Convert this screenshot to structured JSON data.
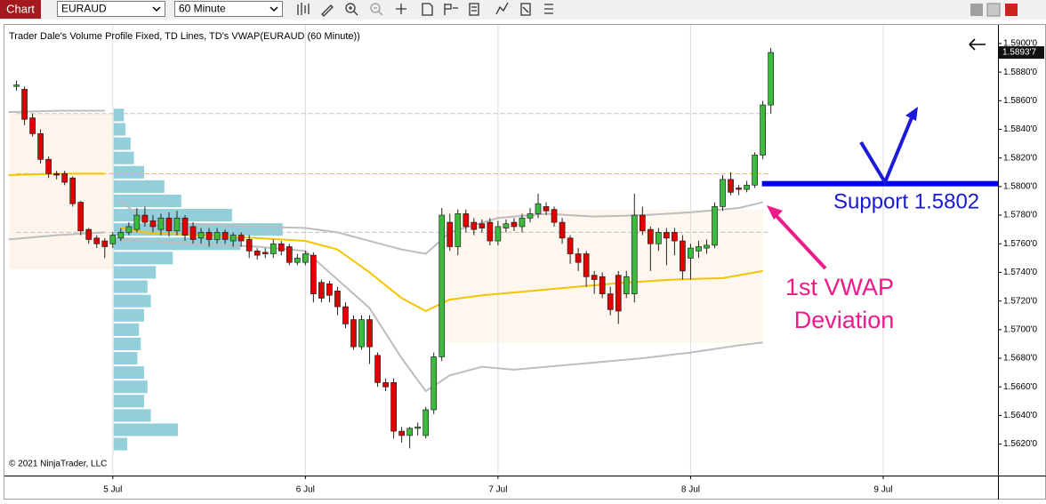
{
  "toolbar": {
    "tab": "Chart",
    "symbol": "EURAUD",
    "interval": "60 Minute"
  },
  "chart_data": {
    "type": "candlestick",
    "title": "Trader Dale's Volume Profile Fixed, TD Lines, TD's VWAP(EURAUD (60 Minute))",
    "copyright": "© 2021 NinjaTrader, LLC",
    "up_color": "#3dbb3d",
    "down_color": "#e00000",
    "open": [
      1.587,
      1.5868,
      1.5848,
      1.5837,
      1.5819,
      1.5809,
      1.5809,
      1.5806,
      1.5789,
      1.577,
      1.5764,
      1.5762,
      1.576,
      1.5764,
      1.5768,
      1.577,
      1.578,
      1.5776,
      1.577,
      1.5778,
      1.5769,
      1.5778,
      1.5772,
      1.5764,
      1.5768,
      1.5763,
      1.5768,
      1.5762,
      1.5766,
      1.5763,
      1.5755,
      1.5754,
      1.5753,
      1.576,
      1.5758,
      1.5747,
      1.5747,
      1.5752,
      1.5733,
      1.5732,
      1.5727,
      1.5716,
      1.5707,
      1.5688,
      1.5707,
      1.5682,
      1.5663,
      1.5663,
      1.5629,
      1.5626,
      1.5631,
      1.5626,
      1.5644,
      1.5681,
      1.5775,
      1.5758,
      1.5781,
      1.5775,
      1.5774,
      1.5775,
      1.5762,
      1.5771,
      1.5775,
      1.5772,
      1.5778,
      1.5781,
      1.5786,
      1.5784,
      1.5775,
      1.5764,
      1.5753,
      1.5753,
      1.5738,
      1.5737,
      1.5725,
      1.5738,
      1.5725,
      1.5725,
      1.578,
      1.577,
      1.576,
      1.5768,
      1.5768,
      1.5762,
      1.575,
      1.5755,
      1.5757,
      1.5759,
      1.5786,
      1.5805,
      1.5799,
      1.5798,
      1.5801,
      1.5822,
      1.5857
    ],
    "high": [
      1.5874,
      1.587,
      1.5851,
      1.584,
      1.5821,
      1.5811,
      1.5811,
      1.5807,
      1.579,
      1.5771,
      1.5766,
      1.5764,
      1.5768,
      1.5771,
      1.5775,
      1.5785,
      1.5786,
      1.578,
      1.5781,
      1.5782,
      1.5783,
      1.578,
      1.5775,
      1.5771,
      1.5771,
      1.5771,
      1.577,
      1.5768,
      1.5768,
      1.5766,
      1.5757,
      1.5757,
      1.5763,
      1.5762,
      1.576,
      1.5753,
      1.5755,
      1.5754,
      1.5735,
      1.5734,
      1.573,
      1.5719,
      1.571,
      1.571,
      1.571,
      1.5684,
      1.5666,
      1.5666,
      1.5632,
      1.5632,
      1.5635,
      1.5646,
      1.5684,
      1.5785,
      1.5781,
      1.5784,
      1.5784,
      1.5778,
      1.5777,
      1.5778,
      1.5776,
      1.5777,
      1.5778,
      1.5781,
      1.5785,
      1.5795,
      1.5789,
      1.5786,
      1.5778,
      1.5766,
      1.5757,
      1.5755,
      1.5741,
      1.574,
      1.573,
      1.5741,
      1.5741,
      1.5795,
      1.5786,
      1.5772,
      1.5771,
      1.5771,
      1.5771,
      1.5766,
      1.576,
      1.5762,
      1.5763,
      1.5789,
      1.5808,
      1.581,
      1.5801,
      1.5804,
      1.5824,
      1.586,
      1.5897
    ],
    "low": [
      1.5867,
      1.5843,
      1.5835,
      1.5816,
      1.5806,
      1.5805,
      1.5801,
      1.5786,
      1.5766,
      1.576,
      1.5757,
      1.575,
      1.5757,
      1.5762,
      1.5766,
      1.5768,
      1.5772,
      1.5768,
      1.5766,
      1.5765,
      1.5766,
      1.5762,
      1.576,
      1.576,
      1.5758,
      1.576,
      1.576,
      1.5758,
      1.5758,
      1.575,
      1.5749,
      1.575,
      1.575,
      1.5752,
      1.5745,
      1.5745,
      1.5745,
      1.5719,
      1.5719,
      1.5719,
      1.571,
      1.5701,
      1.5686,
      1.5686,
      1.5676,
      1.566,
      1.5657,
      1.5624,
      1.5621,
      1.5617,
      1.5626,
      1.5624,
      1.5641,
      1.5678,
      1.5755,
      1.5752,
      1.5768,
      1.5766,
      1.5768,
      1.5759,
      1.5759,
      1.5768,
      1.5769,
      1.5768,
      1.5775,
      1.5778,
      1.578,
      1.5772,
      1.576,
      1.5746,
      1.5741,
      1.573,
      1.5725,
      1.5722,
      1.571,
      1.5704,
      1.5722,
      1.5719,
      1.5766,
      1.5741,
      1.5755,
      1.5745,
      1.5752,
      1.5735,
      1.5735,
      1.575,
      1.5753,
      1.5757,
      1.5783,
      1.5794,
      1.5794,
      1.5796,
      1.5799,
      1.5819,
      1.5851
    ],
    "close": [
      1.5871,
      1.5847,
      1.5837,
      1.5819,
      1.5809,
      1.5808,
      1.5803,
      1.5788,
      1.5769,
      1.5763,
      1.576,
      1.5758,
      1.5766,
      1.5768,
      1.5772,
      1.578,
      1.5775,
      1.5772,
      1.5778,
      1.5769,
      1.5778,
      1.5766,
      1.5763,
      1.5768,
      1.5763,
      1.5768,
      1.5763,
      1.5766,
      1.5762,
      1.5755,
      1.5752,
      1.5753,
      1.576,
      1.5755,
      1.5747,
      1.575,
      1.5753,
      1.5725,
      1.5722,
      1.5724,
      1.5716,
      1.5704,
      1.5688,
      1.5707,
      1.5688,
      1.5663,
      1.566,
      1.5629,
      1.5626,
      1.5631,
      1.5632,
      1.5644,
      1.5681,
      1.578,
      1.5758,
      1.5781,
      1.5772,
      1.577,
      1.5771,
      1.5762,
      1.5772,
      1.5774,
      1.5772,
      1.5778,
      1.5781,
      1.5788,
      1.5783,
      1.5775,
      1.5764,
      1.5753,
      1.5747,
      1.5737,
      1.5735,
      1.5725,
      1.5714,
      1.5713,
      1.5737,
      1.578,
      1.5769,
      1.576,
      1.5768,
      1.5764,
      1.5762,
      1.5741,
      1.5757,
      1.5758,
      1.5759,
      1.5786,
      1.5805,
      1.5796,
      1.5798,
      1.5801,
      1.5822,
      1.5857,
      1.58937
    ],
    "last_price": {
      "value": 1.58937,
      "label": "1.5893'7"
    },
    "series": [
      {
        "color": "#f5c400",
        "x": [
          -1,
          5,
          11,
          12,
          13,
          16,
          22,
          30,
          36,
          40,
          44,
          48,
          51,
          54,
          58,
          64,
          70,
          76,
          82,
          88,
          93
        ],
        "values": [
          1.5808,
          1.5809,
          1.5809,
          null,
          1.5771,
          1.5768,
          1.5766,
          1.5764,
          1.5762,
          1.5756,
          1.574,
          1.5722,
          1.5713,
          1.5721,
          1.5724,
          1.5727,
          1.573,
          1.5733,
          1.5735,
          1.5736,
          1.5741
        ]
      },
      {
        "color": "#bdbdbd",
        "x": [
          -1,
          5,
          11,
          12,
          13,
          16,
          22,
          30,
          36,
          40,
          44,
          48,
          51,
          54,
          60,
          66,
          72,
          78,
          84,
          90,
          93
        ],
        "values": [
          1.5852,
          1.5853,
          1.5853,
          null,
          1.579,
          1.5776,
          1.5774,
          1.5772,
          1.5771,
          1.5768,
          1.5762,
          1.5756,
          1.5753,
          1.5768,
          1.5778,
          1.5781,
          1.5779,
          1.578,
          1.5782,
          1.5785,
          1.5789
        ]
      },
      {
        "color": "#bdbdbd",
        "x": [
          -1,
          5,
          11,
          12,
          13,
          16,
          22,
          30,
          36,
          40,
          44,
          48,
          51,
          54,
          58,
          62,
          70,
          78,
          84,
          90,
          93
        ],
        "values": [
          1.5763,
          1.5766,
          1.5768,
          null,
          1.5763,
          1.5762,
          1.576,
          1.5758,
          1.5755,
          1.5735,
          1.5715,
          1.568,
          1.5657,
          1.5668,
          1.5674,
          1.5672,
          1.5676,
          1.568,
          1.5684,
          1.5689,
          1.5691
        ]
      }
    ],
    "levels": [
      {
        "value": 1.5851,
        "color": "#bdbdbd"
      },
      {
        "value": 1.5809,
        "color": "#e8c800"
      },
      {
        "value": 1.5768,
        "color": "#bdbdbd"
      }
    ],
    "volume_profile": {
      "color": "#7fc7d3",
      "prices": [
        1.585,
        1.584,
        1.583,
        1.582,
        1.581,
        1.58,
        1.579,
        1.578,
        1.577,
        1.576,
        1.575,
        1.574,
        1.573,
        1.572,
        1.571,
        1.57,
        1.569,
        1.568,
        1.567,
        1.566,
        1.565,
        1.564,
        1.563,
        1.562
      ],
      "values": [
        6,
        7,
        10,
        12,
        18,
        30,
        40,
        70,
        100,
        75,
        35,
        25,
        20,
        22,
        18,
        15,
        16,
        14,
        18,
        20,
        18,
        22,
        38,
        8
      ]
    },
    "support": {
      "value": 1.5802,
      "color": "#0000ee"
    },
    "annotations": {
      "support": "Support 1.5802",
      "vwap": [
        "1st VWAP",
        "Deviation"
      ]
    },
    "xlim": [
      -1.5,
      122.3
    ],
    "xticks": [
      {
        "value": 12,
        "label": "5 Jul"
      },
      {
        "value": 36,
        "label": "6 Jul"
      },
      {
        "value": 60,
        "label": "7 Jul"
      },
      {
        "value": 84,
        "label": "8 Jul"
      },
      {
        "value": 108,
        "label": "9 Jul"
      }
    ],
    "ylim": [
      1.5598,
      1.5913
    ],
    "yticks": [
      {
        "value": 1.562,
        "label": "1.5620'0"
      },
      {
        "value": 1.564,
        "label": "1.5640'0"
      },
      {
        "value": 1.566,
        "label": "1.5660'0"
      },
      {
        "value": 1.568,
        "label": "1.5680'0"
      },
      {
        "value": 1.57,
        "label": "1.5700'0"
      },
      {
        "value": 1.572,
        "label": "1.5720'0"
      },
      {
        "value": 1.574,
        "label": "1.5740'0"
      },
      {
        "value": 1.576,
        "label": "1.5760'0"
      },
      {
        "value": 1.578,
        "label": "1.5780'0"
      },
      {
        "value": 1.58,
        "label": "1.5800'0"
      },
      {
        "value": 1.582,
        "label": "1.5820'0"
      },
      {
        "value": 1.584,
        "label": "1.5840'0"
      },
      {
        "value": 1.586,
        "label": "1.5860'0"
      },
      {
        "value": 1.588,
        "label": "1.5880'0"
      },
      {
        "value": 1.59,
        "label": "1.5900'0"
      }
    ],
    "grid": "x"
  }
}
